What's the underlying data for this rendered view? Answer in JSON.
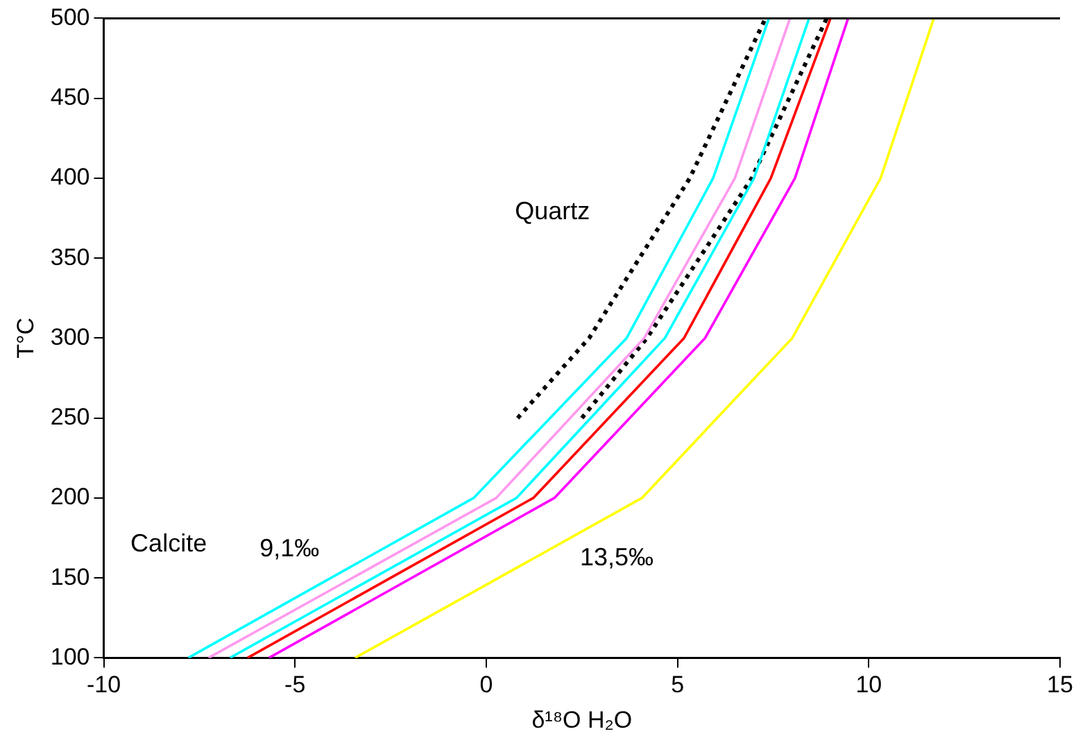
{
  "chart_data": {
    "type": "line",
    "xlabel": "δ¹⁸O H₂O",
    "ylabel": "T°C",
    "xlim": [
      -10,
      15
    ],
    "xticks": [
      -10,
      -5,
      0,
      5,
      10,
      15
    ],
    "ylim": [
      100,
      500
    ],
    "yticks": [
      100,
      150,
      200,
      250,
      300,
      350,
      400,
      450,
      500
    ],
    "grid": false,
    "legend": false,
    "marker": "none",
    "series": [
      {
        "color": "#00ffff",
        "x": [
          -7.79,
          -0.33,
          3.67,
          5.93,
          7.39
        ],
        "values": [
          100,
          200,
          300,
          400,
          500
        ]
      },
      {
        "color": "#ff99ee",
        "x": [
          -7.26,
          0.26,
          4.13,
          6.5,
          7.94
        ],
        "values": [
          100,
          200,
          300,
          400,
          500
        ]
      },
      {
        "color": "#00ffff",
        "x": [
          -6.7,
          0.79,
          4.67,
          7.0,
          8.44
        ],
        "values": [
          100,
          200,
          300,
          400,
          500
        ]
      },
      {
        "color": "#ff0000",
        "x": [
          -6.24,
          1.23,
          5.17,
          7.44,
          9.0
        ],
        "values": [
          100,
          200,
          300,
          400,
          500
        ]
      },
      {
        "color": "#ff00ff",
        "x": [
          -5.68,
          1.78,
          5.72,
          8.07,
          9.46
        ],
        "values": [
          100,
          200,
          300,
          400,
          500
        ]
      },
      {
        "color": "#ffff00",
        "x": [
          -3.43,
          4.07,
          8.0,
          10.31,
          11.7
        ],
        "values": [
          100,
          200,
          300,
          400,
          500
        ]
      },
      {
        "color": "#000000",
        "line_style": "dotted",
        "x": [
          0.82,
          2.69,
          5.32,
          7.3
        ],
        "values": [
          250,
          300,
          400,
          500
        ]
      },
      {
        "color": "#000000",
        "line_style": "dotted",
        "x": [
          2.5,
          4.2,
          6.94,
          8.9
        ],
        "values": [
          250,
          300,
          400,
          500
        ]
      }
    ],
    "annotations": [
      "Quartz",
      "Calcite",
      "9,1‰",
      "13,5‰"
    ]
  }
}
